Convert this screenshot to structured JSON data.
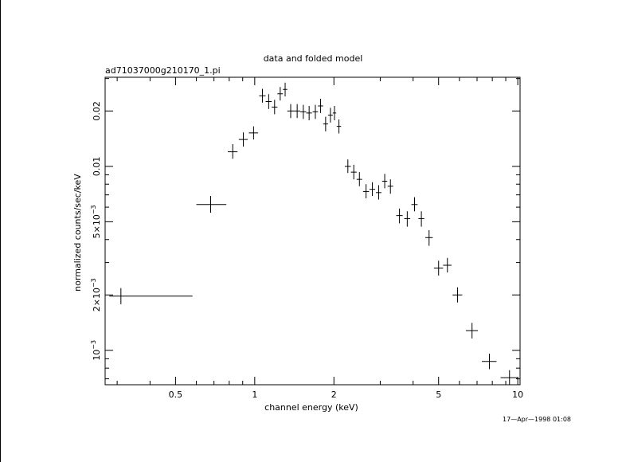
{
  "chart_data": {
    "type": "scatter",
    "title": "data and folded model",
    "subtitle": "ad71037000g210170_1.pi",
    "xlabel": "channel energy (keV)",
    "ylabel": "normalized counts/sec/keV",
    "timestamp": "17—Apr—1998 01:08",
    "x_scale": "log",
    "y_scale": "log",
    "xlim": [
      0.27,
      10.2
    ],
    "ylim": [
      0.00065,
      0.0305
    ],
    "x_ticks": [
      {
        "value": 0.5,
        "label": "0.5"
      },
      {
        "value": 1,
        "label": "1"
      },
      {
        "value": 2,
        "label": "2"
      },
      {
        "value": 5,
        "label": "5"
      },
      {
        "value": 10,
        "label": "10"
      }
    ],
    "y_ticks": [
      {
        "value": 0.001,
        "base": "10",
        "exp": "−3"
      },
      {
        "value": 0.002,
        "base": "2×10",
        "exp": "−3"
      },
      {
        "value": 0.005,
        "base": "5×10",
        "exp": "−3"
      },
      {
        "value": 0.01,
        "base": "0.01",
        "exp": ""
      },
      {
        "value": 0.02,
        "base": "0.02",
        "exp": ""
      }
    ],
    "grid": false,
    "points": [
      {
        "x": 0.31,
        "xlo": 0.28,
        "xhi": 0.58,
        "y": 0.00197,
        "ylo": 0.00178,
        "yhi": 0.00218
      },
      {
        "x": 0.68,
        "xlo": 0.6,
        "xhi": 0.78,
        "y": 0.0062,
        "ylo": 0.0056,
        "yhi": 0.0069
      },
      {
        "x": 0.825,
        "xlo": 0.79,
        "xhi": 0.86,
        "y": 0.012,
        "ylo": 0.011,
        "yhi": 0.0132
      },
      {
        "x": 0.905,
        "xlo": 0.87,
        "xhi": 0.94,
        "y": 0.014,
        "ylo": 0.0128,
        "yhi": 0.0153
      },
      {
        "x": 0.99,
        "xlo": 0.95,
        "xhi": 1.03,
        "y": 0.0152,
        "ylo": 0.014,
        "yhi": 0.0165
      },
      {
        "x": 1.07,
        "xlo": 1.04,
        "xhi": 1.1,
        "y": 0.0242,
        "ylo": 0.0222,
        "yhi": 0.0264
      },
      {
        "x": 1.13,
        "xlo": 1.1,
        "xhi": 1.16,
        "y": 0.0225,
        "ylo": 0.0205,
        "yhi": 0.0247
      },
      {
        "x": 1.19,
        "xlo": 1.16,
        "xhi": 1.22,
        "y": 0.021,
        "ylo": 0.0192,
        "yhi": 0.023
      },
      {
        "x": 1.25,
        "xlo": 1.22,
        "xhi": 1.28,
        "y": 0.0248,
        "ylo": 0.0228,
        "yhi": 0.027
      },
      {
        "x": 1.305,
        "xlo": 1.28,
        "xhi": 1.33,
        "y": 0.0262,
        "ylo": 0.024,
        "yhi": 0.0285
      },
      {
        "x": 1.37,
        "xlo": 1.33,
        "xhi": 1.41,
        "y": 0.02,
        "ylo": 0.0183,
        "yhi": 0.0218
      },
      {
        "x": 1.45,
        "xlo": 1.41,
        "xhi": 1.49,
        "y": 0.02,
        "ylo": 0.0183,
        "yhi": 0.0218
      },
      {
        "x": 1.53,
        "xlo": 1.49,
        "xhi": 1.57,
        "y": 0.0198,
        "ylo": 0.0181,
        "yhi": 0.0216
      },
      {
        "x": 1.61,
        "xlo": 1.57,
        "xhi": 1.65,
        "y": 0.0195,
        "ylo": 0.0178,
        "yhi": 0.0213
      },
      {
        "x": 1.7,
        "xlo": 1.66,
        "xhi": 1.74,
        "y": 0.0198,
        "ylo": 0.0181,
        "yhi": 0.0216
      },
      {
        "x": 1.78,
        "xlo": 1.74,
        "xhi": 1.82,
        "y": 0.0213,
        "ylo": 0.0195,
        "yhi": 0.0233
      },
      {
        "x": 1.86,
        "xlo": 1.82,
        "xhi": 1.9,
        "y": 0.017,
        "ylo": 0.0155,
        "yhi": 0.0186
      },
      {
        "x": 1.94,
        "xlo": 1.9,
        "xhi": 1.98,
        "y": 0.019,
        "ylo": 0.0173,
        "yhi": 0.0208
      },
      {
        "x": 2.01,
        "xlo": 1.98,
        "xhi": 2.04,
        "y": 0.0195,
        "ylo": 0.0178,
        "yhi": 0.0213
      },
      {
        "x": 2.09,
        "xlo": 2.05,
        "xhi": 2.13,
        "y": 0.0165,
        "ylo": 0.0151,
        "yhi": 0.018
      },
      {
        "x": 2.26,
        "xlo": 2.2,
        "xhi": 2.32,
        "y": 0.01,
        "ylo": 0.0092,
        "yhi": 0.0109
      },
      {
        "x": 2.38,
        "xlo": 2.32,
        "xhi": 2.44,
        "y": 0.0093,
        "ylo": 0.0085,
        "yhi": 0.0102
      },
      {
        "x": 2.5,
        "xlo": 2.44,
        "xhi": 2.56,
        "y": 0.0085,
        "ylo": 0.0078,
        "yhi": 0.0093
      },
      {
        "x": 2.65,
        "xlo": 2.58,
        "xhi": 2.72,
        "y": 0.0073,
        "ylo": 0.0067,
        "yhi": 0.008
      },
      {
        "x": 2.8,
        "xlo": 2.73,
        "xhi": 2.87,
        "y": 0.0075,
        "ylo": 0.0069,
        "yhi": 0.0082
      },
      {
        "x": 2.96,
        "xlo": 2.89,
        "xhi": 3.03,
        "y": 0.0072,
        "ylo": 0.0066,
        "yhi": 0.0079
      },
      {
        "x": 3.12,
        "xlo": 3.05,
        "xhi": 3.19,
        "y": 0.0083,
        "ylo": 0.0076,
        "yhi": 0.0091
      },
      {
        "x": 3.28,
        "xlo": 3.2,
        "xhi": 3.36,
        "y": 0.0078,
        "ylo": 0.0071,
        "yhi": 0.0085
      },
      {
        "x": 3.55,
        "xlo": 3.45,
        "xhi": 3.65,
        "y": 0.0054,
        "ylo": 0.0049,
        "yhi": 0.0059
      },
      {
        "x": 3.8,
        "xlo": 3.7,
        "xhi": 3.9,
        "y": 0.0052,
        "ylo": 0.0047,
        "yhi": 0.0057
      },
      {
        "x": 4.05,
        "xlo": 3.94,
        "xhi": 4.16,
        "y": 0.0062,
        "ylo": 0.0057,
        "yhi": 0.0068
      },
      {
        "x": 4.3,
        "xlo": 4.19,
        "xhi": 4.41,
        "y": 0.0052,
        "ylo": 0.0047,
        "yhi": 0.0057
      },
      {
        "x": 4.6,
        "xlo": 4.45,
        "xhi": 4.75,
        "y": 0.0041,
        "ylo": 0.0037,
        "yhi": 0.0045
      },
      {
        "x": 5.0,
        "xlo": 4.8,
        "xhi": 5.2,
        "y": 0.0028,
        "ylo": 0.00255,
        "yhi": 0.00307
      },
      {
        "x": 5.4,
        "xlo": 5.2,
        "xhi": 5.6,
        "y": 0.0029,
        "ylo": 0.00265,
        "yhi": 0.00318
      },
      {
        "x": 5.9,
        "xlo": 5.65,
        "xhi": 6.15,
        "y": 0.002,
        "ylo": 0.00182,
        "yhi": 0.0022
      },
      {
        "x": 6.7,
        "xlo": 6.35,
        "xhi": 7.05,
        "y": 0.00128,
        "ylo": 0.00116,
        "yhi": 0.00141
      },
      {
        "x": 7.8,
        "xlo": 7.3,
        "xhi": 8.3,
        "y": 0.00087,
        "ylo": 0.00079,
        "yhi": 0.00096
      },
      {
        "x": 9.3,
        "xlo": 8.6,
        "xhi": 10.0,
        "y": 0.00071,
        "ylo": 0.00065,
        "yhi": 0.00078
      }
    ]
  }
}
